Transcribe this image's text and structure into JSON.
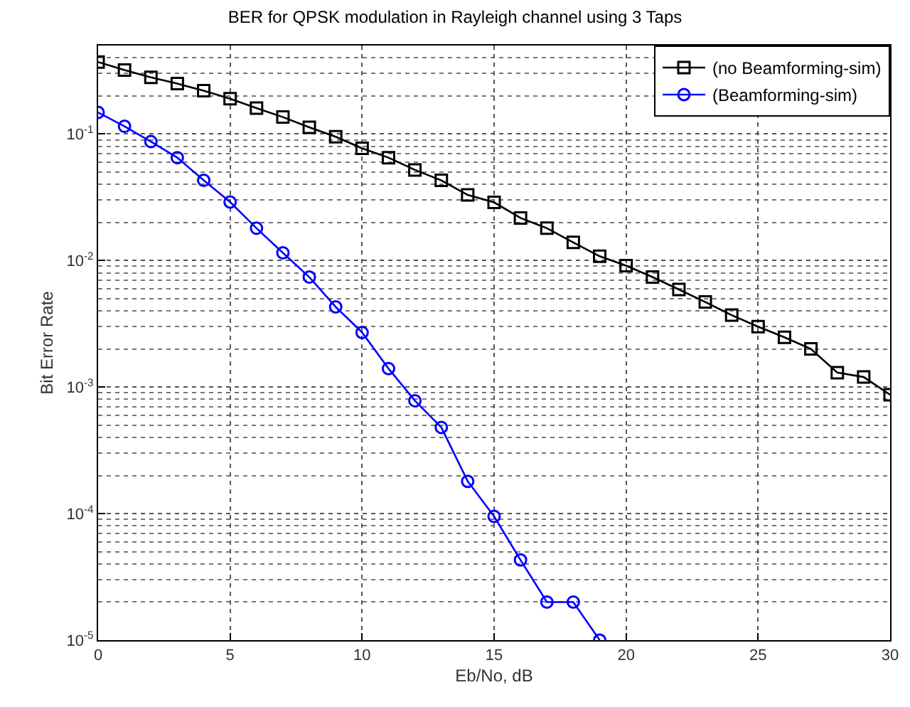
{
  "chart_data": {
    "type": "line",
    "title": "BER for QPSK modulation in Rayleigh channel using 3 Taps",
    "xlabel": "Eb/No, dB",
    "ylabel": "Bit Error Rate",
    "x": [
      0,
      1,
      2,
      3,
      4,
      5,
      6,
      7,
      8,
      9,
      10,
      11,
      12,
      13,
      14,
      15,
      16,
      17,
      18,
      19,
      20,
      21,
      22,
      23,
      24,
      25,
      26,
      27,
      28,
      29,
      30
    ],
    "series": [
      {
        "name": "(no Beamforming-sim)",
        "color": "#000000",
        "marker": "square",
        "values": [
          0.37,
          0.32,
          0.28,
          0.25,
          0.22,
          0.19,
          0.16,
          0.136,
          0.113,
          0.095,
          0.077,
          0.065,
          0.052,
          0.043,
          0.033,
          0.0288,
          0.0217,
          0.018,
          0.0139,
          0.0108,
          0.0091,
          0.0074,
          0.0059,
          0.0047,
          0.0037,
          0.003,
          0.00247,
          0.002,
          0.0013,
          0.0012,
          0.00087
        ]
      },
      {
        "name": "(Beamforming-sim)",
        "color": "#0000ff",
        "marker": "circle",
        "values": [
          0.148,
          0.115,
          0.087,
          0.065,
          0.043,
          0.029,
          0.018,
          0.0115,
          0.0074,
          0.0043,
          0.0027,
          0.0014,
          0.00078,
          0.00048,
          0.00018,
          9.5e-05,
          4.3e-05,
          2e-05,
          2e-05,
          1e-05,
          null,
          null,
          null,
          null,
          null,
          null,
          null,
          null,
          null,
          null,
          null
        ]
      }
    ],
    "xlim": [
      0,
      30
    ],
    "xticks": [
      0,
      5,
      10,
      15,
      20,
      25,
      30
    ],
    "ylim": [
      1e-05,
      0.5
    ],
    "yticks": [
      {
        "value": 1e-05,
        "label": "10$^{-5}$"
      },
      {
        "value": 0.0001,
        "label": "10$^{-4}$"
      },
      {
        "value": 0.001,
        "label": "10$^{-3}$"
      },
      {
        "value": 0.01,
        "label": "10$^{-2}$"
      },
      {
        "value": 0.1,
        "label": "10$^{-1}$"
      }
    ],
    "log": true,
    "grid": true,
    "legend": "top right",
    "line_style": "solid"
  }
}
